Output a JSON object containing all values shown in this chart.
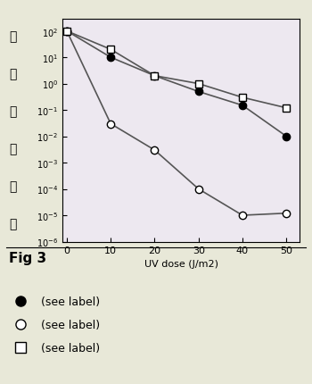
{
  "x": [
    0,
    10,
    20,
    30,
    40,
    50
  ],
  "filled_circle": [
    100,
    10,
    2.0,
    0.5,
    0.15,
    0.01
  ],
  "open_circle": [
    100,
    0.03,
    0.003,
    0.0001,
    1e-05,
    1.2e-05
  ],
  "open_square": [
    100,
    20,
    2.0,
    1.0,
    0.3,
    0.12
  ],
  "xlabel_ascii": " (J/m",
  "ylim_min": 1e-06,
  "ylim_max": 300,
  "xlim_min": -1,
  "xlim_max": 53,
  "bg_color_outer": "#e8e8d8",
  "bg_color_plot": "#ede8f0",
  "line_color": "#555555",
  "ytick_vals": [
    1e-06,
    1e-05,
    0.0001,
    0.001,
    0.01,
    0.1,
    1.0,
    10.0,
    100.0
  ],
  "ytick_labels": [
    "10-6",
    "10-5",
    "10-4",
    "10-3",
    "10-2",
    "10-1",
    "100",
    "101",
    "102"
  ]
}
